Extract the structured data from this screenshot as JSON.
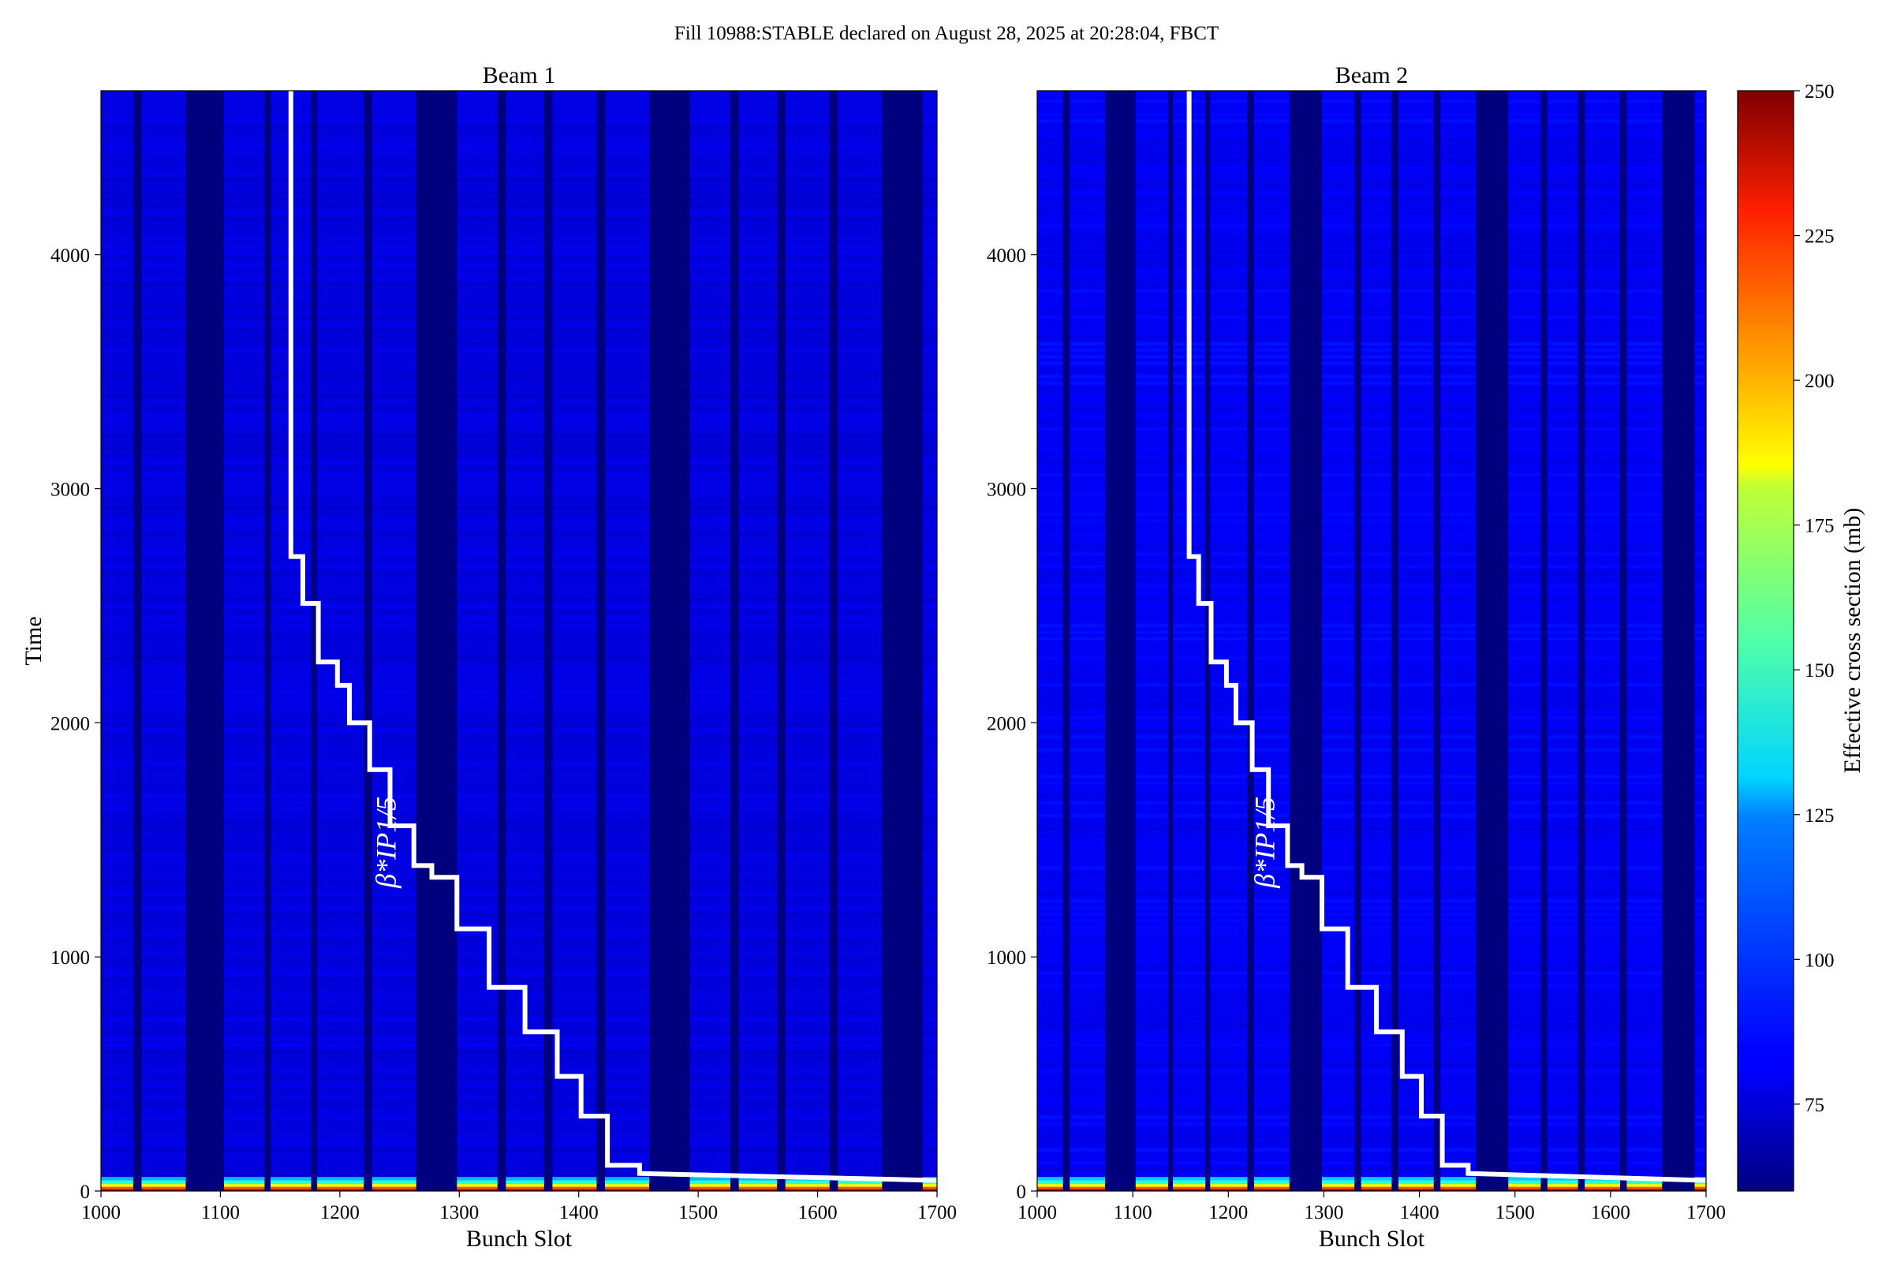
{
  "figure": {
    "suptitle": "Fill 10988:STABLE declared on August 28, 2025 at 20:28:04, FBCT"
  },
  "colorbar": {
    "label": "Effective cross section (mb)",
    "min": 60,
    "max": 250,
    "ticks": [
      75,
      100,
      125,
      150,
      175,
      200,
      225,
      250
    ],
    "colormap": "jet"
  },
  "chart_data": [
    {
      "type": "heatmap",
      "title": "Beam 1",
      "xlabel": "Bunch Slot",
      "ylabel": "Time",
      "xlim": [
        1000,
        1700
      ],
      "ylim": [
        0,
        4700
      ],
      "xticks": [
        1000,
        1100,
        1200,
        1300,
        1400,
        1500,
        1600,
        1700
      ],
      "yticks": [
        0,
        1000,
        2000,
        3000,
        4000
      ],
      "empty_slot_ranges": [
        [
          1027,
          1034
        ],
        [
          1071,
          1103
        ],
        [
          1137,
          1142
        ],
        [
          1176,
          1181
        ],
        [
          1220,
          1227
        ],
        [
          1264,
          1298
        ],
        [
          1332,
          1339
        ],
        [
          1371,
          1378
        ],
        [
          1415,
          1422
        ],
        [
          1459,
          1493
        ],
        [
          1527,
          1534
        ],
        [
          1566,
          1573
        ],
        [
          1610,
          1617
        ],
        [
          1654,
          1688
        ]
      ],
      "filled_level_mb": 78,
      "early_peak_mb": 240,
      "annotation": "β*IP1/5",
      "step_line": [
        [
          1159,
          4700
        ],
        [
          1159,
          2710
        ],
        [
          1169,
          2710
        ],
        [
          1169,
          2510
        ],
        [
          1182,
          2510
        ],
        [
          1182,
          2260
        ],
        [
          1198,
          2260
        ],
        [
          1198,
          2160
        ],
        [
          1208,
          2160
        ],
        [
          1208,
          2000
        ],
        [
          1225,
          2000
        ],
        [
          1225,
          1800
        ],
        [
          1242,
          1800
        ],
        [
          1242,
          1560
        ],
        [
          1262,
          1560
        ],
        [
          1262,
          1390
        ],
        [
          1277,
          1390
        ],
        [
          1277,
          1340
        ],
        [
          1298,
          1340
        ],
        [
          1298,
          1120
        ],
        [
          1325,
          1120
        ],
        [
          1325,
          870
        ],
        [
          1355,
          870
        ],
        [
          1355,
          680
        ],
        [
          1382,
          680
        ],
        [
          1382,
          490
        ],
        [
          1402,
          490
        ],
        [
          1402,
          320
        ],
        [
          1424,
          320
        ],
        [
          1424,
          110
        ],
        [
          1451,
          110
        ],
        [
          1451,
          75
        ],
        [
          1700,
          45
        ]
      ]
    },
    {
      "type": "heatmap",
      "title": "Beam 2",
      "xlabel": "Bunch Slot",
      "ylabel": "",
      "xlim": [
        1000,
        1700
      ],
      "ylim": [
        0,
        4700
      ],
      "xticks": [
        1000,
        1100,
        1200,
        1300,
        1400,
        1500,
        1600,
        1700
      ],
      "yticks": [
        0,
        1000,
        2000,
        3000,
        4000
      ],
      "empty_slot_ranges": [
        [
          1027,
          1034
        ],
        [
          1071,
          1103
        ],
        [
          1137,
          1142
        ],
        [
          1176,
          1181
        ],
        [
          1220,
          1227
        ],
        [
          1264,
          1298
        ],
        [
          1332,
          1339
        ],
        [
          1371,
          1378
        ],
        [
          1415,
          1422
        ],
        [
          1459,
          1493
        ],
        [
          1527,
          1534
        ],
        [
          1566,
          1573
        ],
        [
          1610,
          1617
        ],
        [
          1654,
          1688
        ]
      ],
      "filled_level_mb": 82,
      "early_peak_mb": 245,
      "annotation": "β*IP1/5",
      "step_line": [
        [
          1159,
          4700
        ],
        [
          1159,
          2710
        ],
        [
          1169,
          2710
        ],
        [
          1169,
          2510
        ],
        [
          1182,
          2510
        ],
        [
          1182,
          2260
        ],
        [
          1198,
          2260
        ],
        [
          1198,
          2160
        ],
        [
          1208,
          2160
        ],
        [
          1208,
          2000
        ],
        [
          1225,
          2000
        ],
        [
          1225,
          1800
        ],
        [
          1242,
          1800
        ],
        [
          1242,
          1560
        ],
        [
          1262,
          1560
        ],
        [
          1262,
          1390
        ],
        [
          1277,
          1390
        ],
        [
          1277,
          1340
        ],
        [
          1298,
          1340
        ],
        [
          1298,
          1120
        ],
        [
          1325,
          1120
        ],
        [
          1325,
          870
        ],
        [
          1355,
          870
        ],
        [
          1355,
          680
        ],
        [
          1382,
          680
        ],
        [
          1382,
          490
        ],
        [
          1402,
          490
        ],
        [
          1402,
          320
        ],
        [
          1424,
          320
        ],
        [
          1424,
          110
        ],
        [
          1451,
          110
        ],
        [
          1451,
          75
        ],
        [
          1700,
          45
        ]
      ]
    }
  ]
}
